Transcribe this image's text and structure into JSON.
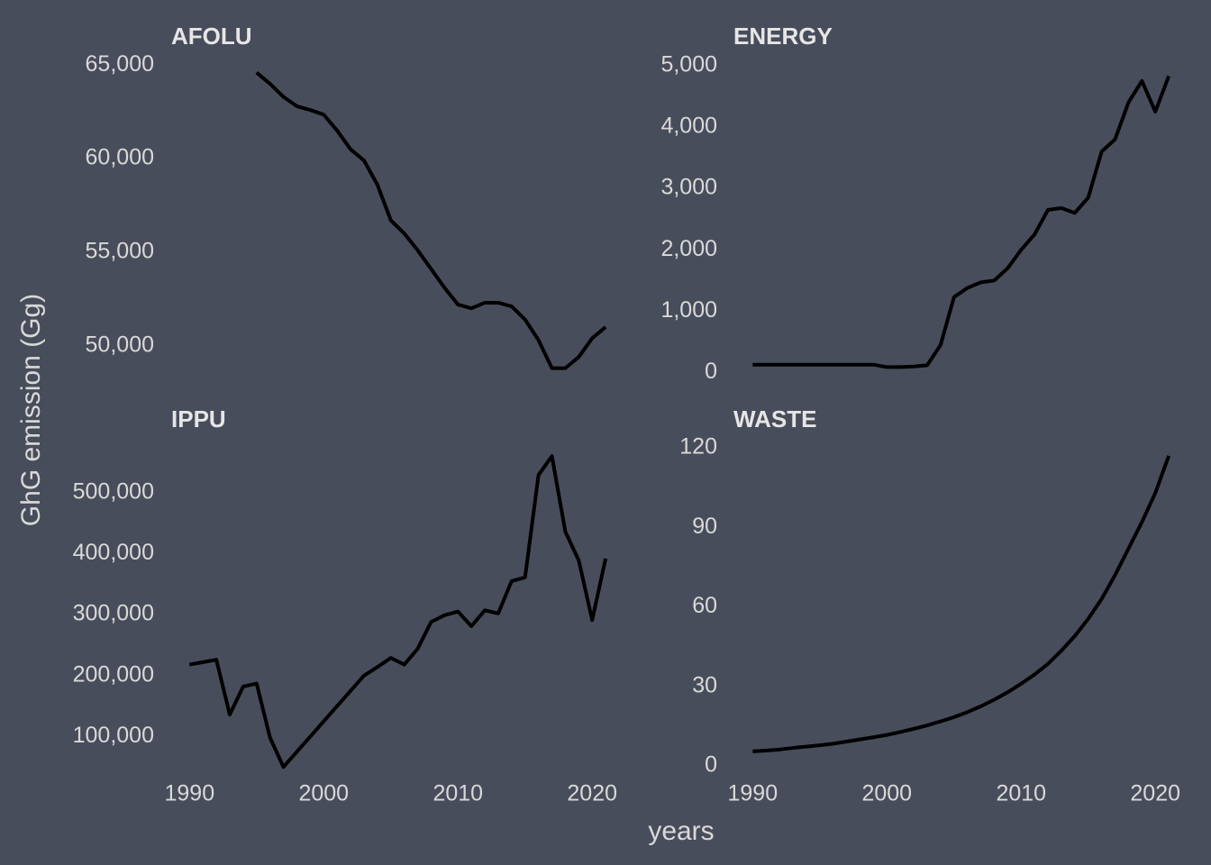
{
  "x_label": "years",
  "y_label": "GhG emission (Gg)",
  "chart_data": [
    {
      "type": "line",
      "title": "AFOLU",
      "color": "#000000",
      "x": [
        1995,
        1996,
        1997,
        1998,
        1999,
        2000,
        2001,
        2002,
        2003,
        2004,
        2005,
        2006,
        2007,
        2008,
        2009,
        2010,
        2011,
        2012,
        2013,
        2014,
        2015,
        2016,
        2017,
        2018,
        2019,
        2020,
        2021
      ],
      "values": [
        64600,
        64000,
        63300,
        62800,
        62600,
        62350,
        61500,
        60500,
        59900,
        58600,
        56700,
        56000,
        55100,
        54100,
        53100,
        52200,
        52000,
        52300,
        52300,
        52100,
        51400,
        50300,
        48800,
        48800,
        49400,
        50400,
        51000
      ],
      "xlim": [
        1988.3,
        2022.2
      ],
      "ylim": [
        48300,
        65300
      ],
      "yticks": [
        {
          "value": 50000,
          "label": "50,000"
        },
        {
          "value": 55000,
          "label": "55,000"
        },
        {
          "value": 60000,
          "label": "60,000"
        },
        {
          "value": 65000,
          "label": "65,000"
        }
      ]
    },
    {
      "type": "line",
      "title": "ENERGY",
      "color": "#000000",
      "x": [
        1990,
        1991,
        1992,
        1993,
        1994,
        1995,
        1996,
        1997,
        1998,
        1999,
        2000,
        2001,
        2002,
        2003,
        2004,
        2005,
        2006,
        2007,
        2008,
        2009,
        2010,
        2011,
        2012,
        2013,
        2014,
        2015,
        2016,
        2017,
        2018,
        2019,
        2020,
        2021
      ],
      "values": [
        130,
        130,
        130,
        130,
        130,
        130,
        130,
        130,
        130,
        130,
        90,
        90,
        100,
        120,
        450,
        1230,
        1380,
        1470,
        1500,
        1700,
        2000,
        2250,
        2650,
        2680,
        2600,
        2850,
        3600,
        3800,
        4400,
        4750,
        4250,
        4830
      ],
      "xlim": [
        1988.3,
        2022.2
      ],
      "ylim": [
        -80,
        5100
      ],
      "yticks": [
        0,
        {
          "value": 1000,
          "label": "1,000"
        },
        {
          "value": 2000,
          "label": "2,000"
        },
        {
          "value": 3000,
          "label": "3,000"
        },
        {
          "value": 4000,
          "label": "4,000"
        },
        {
          "value": 5000,
          "label": "5,000"
        }
      ]
    },
    {
      "type": "line",
      "title": "IPPU",
      "color": "#000000",
      "x": [
        1990,
        1991,
        1992,
        1993,
        1994,
        1995,
        1996,
        1997,
        1998,
        1999,
        2000,
        2001,
        2002,
        2003,
        2004,
        2005,
        2006,
        2007,
        2008,
        2009,
        2010,
        2011,
        2012,
        2013,
        2014,
        2015,
        2016,
        2017,
        2018,
        2019,
        2020,
        2021
      ],
      "values": [
        218000,
        222000,
        226000,
        136000,
        182000,
        187000,
        98000,
        50000,
        75000,
        100000,
        125000,
        150000,
        175000,
        200000,
        214000,
        229000,
        218000,
        244000,
        288000,
        299000,
        305000,
        281000,
        307000,
        302000,
        355000,
        361000,
        529000,
        560000,
        436000,
        389000,
        291000,
        392000
      ],
      "xlim": [
        1988.3,
        2022.2
      ],
      "ylim": [
        40000,
        584000
      ],
      "xticks": [
        1990,
        2000,
        2010,
        2020
      ],
      "yticks": [
        {
          "value": 100000,
          "label": "100,000"
        },
        {
          "value": 200000,
          "label": "200,000"
        },
        {
          "value": 300000,
          "label": "300,000"
        },
        {
          "value": 400000,
          "label": "400,000"
        },
        {
          "value": 500000,
          "label": "500,000"
        }
      ]
    },
    {
      "type": "line",
      "title": "WASTE",
      "color": "#000000",
      "x": [
        1990,
        1991,
        1992,
        1993,
        1994,
        1995,
        1996,
        1997,
        1998,
        1999,
        2000,
        2001,
        2002,
        2003,
        2004,
        2005,
        2006,
        2007,
        2008,
        2009,
        2010,
        2011,
        2012,
        2013,
        2014,
        2015,
        2016,
        2017,
        2018,
        2019,
        2020,
        2021
      ],
      "values": [
        5.5,
        5.8,
        6.2,
        6.8,
        7.3,
        7.8,
        8.4,
        9.2,
        10,
        10.8,
        11.7,
        12.8,
        14,
        15.3,
        16.8,
        18.4,
        20.3,
        22.5,
        25,
        27.8,
        31,
        34.5,
        38.5,
        43.5,
        49,
        55.5,
        63,
        72,
        82,
        92,
        103,
        117
      ],
      "xlim": [
        1988.3,
        2022.2
      ],
      "ylim": [
        -2.7,
        122.4
      ],
      "xticks": [
        1990,
        2000,
        2010,
        2020
      ],
      "yticks": [
        0,
        30,
        60,
        90,
        120
      ]
    }
  ]
}
